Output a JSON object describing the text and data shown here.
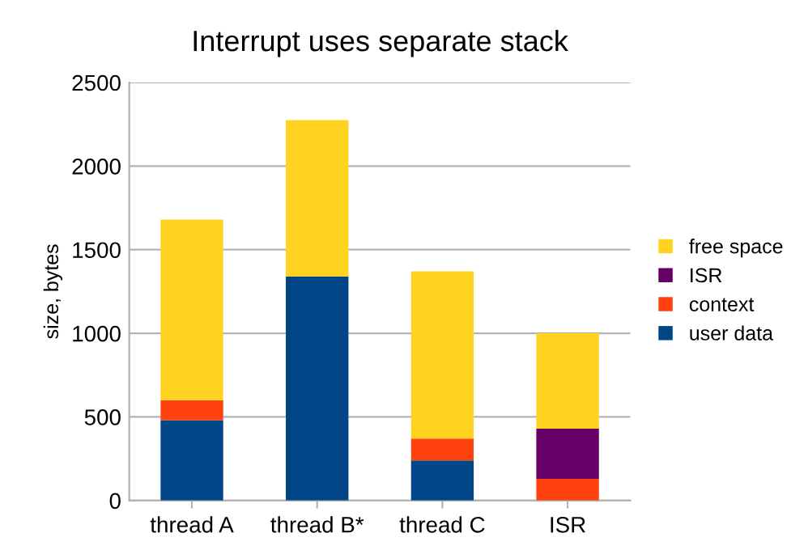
{
  "chart_data": {
    "type": "bar",
    "title": "Interrupt uses separate stack",
    "ylabel": "size, bytes",
    "categories": [
      "thread A",
      "thread B*",
      "thread C",
      "ISR"
    ],
    "stacked": true,
    "series": [
      {
        "name": "user data",
        "color": "#004586",
        "values": [
          480,
          1340,
          240,
          0
        ]
      },
      {
        "name": "context",
        "color": "#ff420e",
        "values": [
          120,
          0,
          130,
          130
        ]
      },
      {
        "name": "ISR",
        "color": "#660066",
        "values": [
          0,
          0,
          0,
          300
        ]
      },
      {
        "name": "free space",
        "color": "#ffd320",
        "values": [
          1080,
          935,
          1000,
          570
        ]
      }
    ],
    "ylim": [
      0,
      2500
    ],
    "yticks": [
      0,
      500,
      1000,
      1500,
      2000,
      2500
    ],
    "grid": "y",
    "legend": "right"
  }
}
